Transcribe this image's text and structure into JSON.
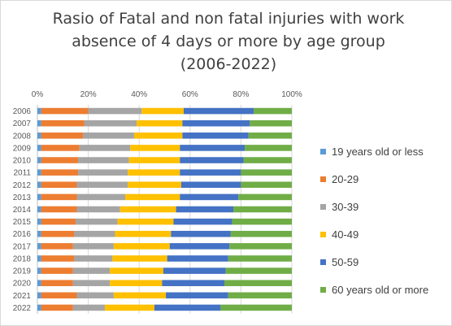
{
  "chart_data": {
    "type": "bar",
    "orientation": "horizontal",
    "stacked": "100%",
    "title": "Rasio of Fatal and non fatal injuries with work absence of 4 days or more by age group (2006-2022)",
    "xlim": [
      0,
      100
    ],
    "x_ticks": [
      "0%",
      "20%",
      "40%",
      "60%",
      "80%",
      "100%"
    ],
    "x_axis_position": "top",
    "grid": true,
    "legend_position": "right",
    "categories": [
      "2006",
      "2007",
      "2008",
      "2009",
      "2010",
      "2011",
      "2012",
      "2013",
      "2014",
      "2015",
      "2016",
      "2017",
      "2018",
      "2019",
      "2020",
      "2021",
      "2022"
    ],
    "series": [
      {
        "name": "19 years old or less",
        "color": "#5b9bd5",
        "values": [
          1.5,
          1.5,
          1.5,
          1.5,
          1.5,
          1.5,
          1.5,
          1.5,
          1.5,
          1.5,
          1.5,
          1.5,
          1.5,
          1.5,
          1.5,
          1.5,
          1.5
        ]
      },
      {
        "name": "20-29",
        "color": "#ed7d31",
        "values": [
          18.5,
          17,
          16.5,
          15,
          14.5,
          14.5,
          14,
          14,
          14,
          13.5,
          13,
          12.5,
          13,
          12.5,
          12.5,
          14,
          12.5
        ]
      },
      {
        "name": "30-39",
        "color": "#a5a5a5",
        "values": [
          21,
          20.5,
          20,
          20,
          20,
          19.5,
          20,
          19,
          17,
          16.5,
          16,
          16,
          15,
          14.5,
          14.5,
          14.5,
          12.5
        ]
      },
      {
        "name": "40-49",
        "color": "#ffc000",
        "values": [
          16.5,
          18,
          19,
          19.5,
          20,
          20.5,
          21,
          21.5,
          22,
          22,
          22,
          22,
          21.5,
          21,
          20.5,
          20.5,
          19.5
        ]
      },
      {
        "name": "50-59",
        "color": "#4472c4",
        "values": [
          27.5,
          26.5,
          26,
          25.5,
          25,
          24,
          23.5,
          23,
          22.5,
          23,
          23.5,
          23.5,
          24,
          24.5,
          24.5,
          24.5,
          26
        ]
      },
      {
        "name": "60 years old or more",
        "color": "#70ad47",
        "values": [
          15,
          16.5,
          17,
          18.5,
          19,
          20,
          20,
          21,
          23,
          23.5,
          24,
          24.5,
          25,
          26,
          26.5,
          25,
          28
        ]
      }
    ]
  }
}
